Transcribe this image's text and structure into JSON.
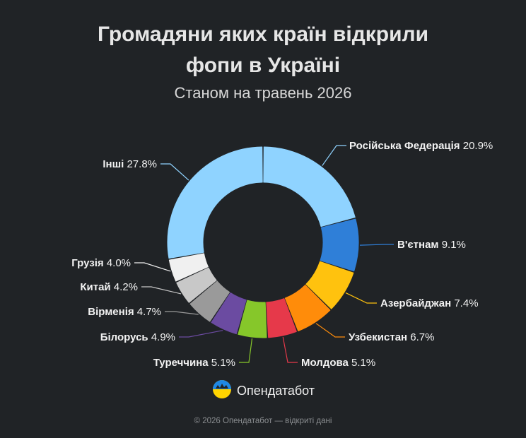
{
  "header": {
    "title_line1": "Громадяни яких країн відкрили",
    "title_line2": "фопи в Україні",
    "subtitle": "Станом на травень 2026"
  },
  "brand": {
    "name": "Опендатабот",
    "logo_icon": "opendatabot-logo-icon"
  },
  "footer": {
    "text": "© 2026 Опендатабот — відкриті дані"
  },
  "chart_data": {
    "type": "pie",
    "variant": "donut",
    "title": "Громадяни яких країн відкрили фопи в Україні",
    "subtitle": "Станом на травень 2026",
    "unit": "%",
    "slices": [
      {
        "label": "Російська Федерація",
        "value": 20.9,
        "value_text": "20.9%",
        "color": "#8fd3ff"
      },
      {
        "label": "В'єтнам",
        "value": 9.1,
        "value_text": "9.1%",
        "color": "#2f7fd8"
      },
      {
        "label": "Азербайджан",
        "value": 7.4,
        "value_text": "7.4%",
        "color": "#ffc20e"
      },
      {
        "label": "Узбекистан",
        "value": 6.7,
        "value_text": "6.7%",
        "color": "#ff8c0a"
      },
      {
        "label": "Молдова",
        "value": 5.1,
        "value_text": "5.1%",
        "color": "#e6394a"
      },
      {
        "label": "Туреччина",
        "value": 5.1,
        "value_text": "5.1%",
        "color": "#86c72a"
      },
      {
        "label": "Білорусь",
        "value": 4.9,
        "value_text": "4.9%",
        "color": "#6b4ba1"
      },
      {
        "label": "Вірменія",
        "value": 4.7,
        "value_text": "4.7%",
        "color": "#9a9a9a"
      },
      {
        "label": "Китай",
        "value": 4.2,
        "value_text": "4.2%",
        "color": "#c8c8c8"
      },
      {
        "label": "Грузія",
        "value": 4.0,
        "value_text": "4.0%",
        "color": "#f0f0f0"
      },
      {
        "label": "Інші",
        "value": 27.8,
        "value_text": "27.8%",
        "color": "#8fd3ff"
      }
    ]
  }
}
